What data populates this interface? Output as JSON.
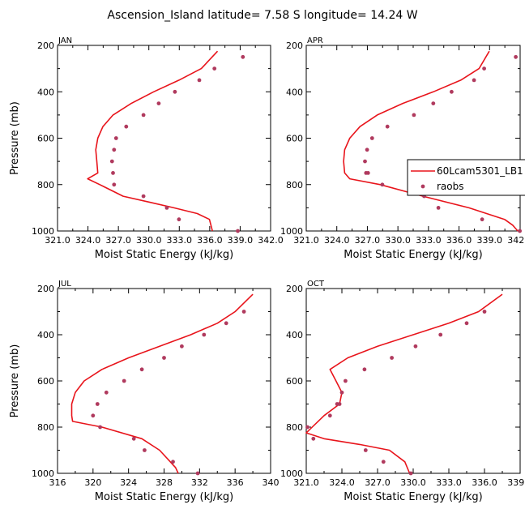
{
  "figure": {
    "title": "Ascension_Island   latitude= 7.58 S longitude= 14.24 W"
  },
  "colors": {
    "model": "#e8141b",
    "raobs": "#b03a5e",
    "axis": "#000000"
  },
  "legend": {
    "placement": "right of APR panel",
    "model": "60Lcam5301_LB1",
    "obs": "raobs"
  },
  "chart_data": [
    {
      "type": "line",
      "panel": "JAN",
      "xlabel": "Moist Static Energy (kJ/kg)",
      "ylabel": "Pressure (mb)",
      "xlim": [
        321.03,
        342.03
      ],
      "ylim": [
        1000,
        200
      ],
      "xticks": [
        "321.0",
        "324.0",
        "327.0",
        "330.0",
        "333.0",
        "336.0",
        "339.0",
        "342.0"
      ],
      "yticks": [
        "200",
        "400",
        "600",
        "800",
        "1000"
      ],
      "series": [
        {
          "name": "60Lcam5301_LB1",
          "style": "line",
          "x": [
            336.8,
            335.2,
            333.0,
            330.5,
            328.3,
            326.5,
            325.5,
            325.0,
            324.8,
            324.9,
            325.0,
            324.0,
            325.2,
            327.5,
            330.0,
            332.5,
            334.8,
            336.0,
            336.3
          ],
          "y": [
            225,
            300,
            350,
            400,
            450,
            500,
            550,
            600,
            650,
            700,
            750,
            775,
            800,
            850,
            875,
            900,
            925,
            950,
            1000
          ]
        },
        {
          "name": "raobs",
          "style": "markers",
          "x": [
            339.3,
            336.5,
            335.0,
            332.6,
            331.0,
            329.5,
            327.8,
            326.8,
            326.6,
            326.4,
            326.5,
            326.6,
            329.5,
            331.8,
            333.0,
            338.8
          ],
          "y": [
            250,
            300,
            350,
            400,
            450,
            500,
            550,
            600,
            650,
            700,
            750,
            800,
            850,
            900,
            950,
            1000
          ]
        }
      ]
    },
    {
      "type": "line",
      "panel": "APR",
      "xlabel": "Moist Static Energy (kJ/kg)",
      "ylabel": "",
      "xlim": [
        321.03,
        342.03
      ],
      "ylim": [
        1000,
        200
      ],
      "xticks": [
        "321.0",
        "324.0",
        "327.0",
        "330.0",
        "333.0",
        "336.0",
        "339.0",
        "342.0"
      ],
      "yticks": [
        "200",
        "400",
        "600",
        "800",
        "1000"
      ],
      "series": [
        {
          "name": "60Lcam5301_LB1",
          "style": "line",
          "x": [
            339.0,
            338.0,
            336.2,
            333.5,
            330.5,
            328.0,
            326.3,
            325.3,
            324.8,
            324.7,
            324.8,
            325.3,
            328.3,
            332.5,
            337.0,
            340.5,
            341.3,
            341.8
          ],
          "y": [
            225,
            300,
            350,
            400,
            450,
            500,
            550,
            600,
            650,
            700,
            750,
            775,
            800,
            850,
            900,
            950,
            975,
            1000
          ]
        },
        {
          "name": "raobs",
          "style": "markers",
          "x": [
            341.6,
            338.5,
            337.5,
            335.3,
            333.5,
            331.6,
            329.0,
            327.5,
            327.0,
            326.8,
            326.9,
            327.1,
            328.5,
            332.6,
            334.0,
            338.3,
            342.0
          ],
          "y": [
            250,
            300,
            350,
            400,
            450,
            500,
            550,
            600,
            650,
            700,
            750,
            750,
            800,
            850,
            900,
            950,
            1000
          ]
        }
      ]
    },
    {
      "type": "line",
      "panel": "JUL",
      "xlabel": "Moist Static Energy (kJ/kg)",
      "ylabel": "Pressure (mb)",
      "xlim": [
        316,
        340
      ],
      "ylim": [
        1000,
        200
      ],
      "xticks": [
        "316",
        "320",
        "324",
        "328",
        "332",
        "336",
        "340"
      ],
      "yticks": [
        "200",
        "400",
        "600",
        "800",
        "1000"
      ],
      "series": [
        {
          "name": "60Lcam5301_LB1",
          "style": "line",
          "x": [
            338.0,
            336.0,
            334.0,
            331.0,
            327.5,
            324.0,
            321.0,
            319.0,
            318.0,
            317.6,
            317.6,
            317.7,
            321.0,
            325.5,
            327.5,
            328.7,
            329.3,
            329.6
          ],
          "y": [
            225,
            300,
            350,
            400,
            450,
            500,
            550,
            600,
            650,
            700,
            750,
            775,
            800,
            850,
            900,
            950,
            975,
            1000
          ]
        },
        {
          "name": "raobs",
          "style": "markers",
          "x": [
            337.0,
            335.0,
            332.5,
            330.0,
            328.0,
            325.5,
            323.5,
            321.5,
            320.5,
            320.0,
            320.8,
            324.6,
            325.8,
            329.0,
            331.8
          ],
          "y": [
            300,
            350,
            400,
            450,
            500,
            550,
            600,
            650,
            700,
            750,
            800,
            850,
            900,
            950,
            1000
          ]
        }
      ]
    },
    {
      "type": "line",
      "panel": "OCT",
      "xlabel": "Moist Static Energy (kJ/kg)",
      "ylabel": "",
      "xlim": [
        321.0,
        339.0
      ],
      "ylim": [
        1000,
        200
      ],
      "xticks": [
        "321.0",
        "324.0",
        "327.0",
        "330.0",
        "333.0",
        "336.0",
        "339.0"
      ],
      "yticks": [
        "200",
        "400",
        "600",
        "800",
        "1000"
      ],
      "series": [
        {
          "name": "60Lcam5301_LB1",
          "style": "line",
          "x": [
            337.5,
            335.5,
            333.0,
            330.0,
            327.0,
            324.5,
            323.0,
            323.5,
            324.0,
            323.8,
            322.5,
            321.0,
            322.5,
            325.5,
            328.0,
            329.3,
            329.7
          ],
          "y": [
            225,
            300,
            350,
            400,
            450,
            500,
            550,
            600,
            650,
            700,
            750,
            825,
            850,
            875,
            900,
            950,
            1000
          ]
        },
        {
          "name": "raobs",
          "style": "markers",
          "x": [
            336.0,
            334.5,
            332.3,
            330.2,
            328.2,
            325.9,
            324.3,
            324.0,
            323.8,
            323.6,
            323.0,
            321.1,
            321.6,
            326.0,
            327.5,
            329.8
          ],
          "y": [
            300,
            350,
            400,
            450,
            500,
            550,
            600,
            650,
            700,
            700,
            750,
            800,
            850,
            900,
            950,
            1000
          ]
        }
      ]
    }
  ]
}
